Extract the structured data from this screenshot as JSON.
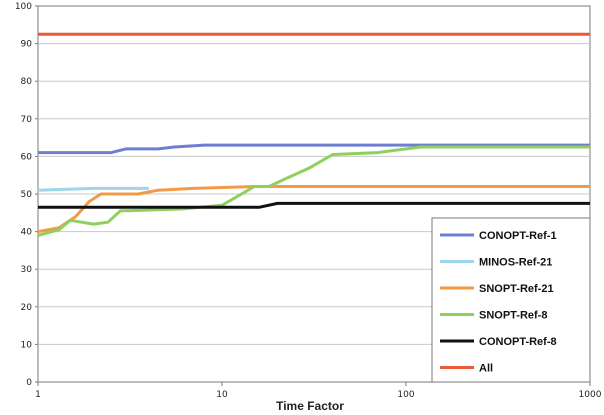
{
  "chart_data": {
    "type": "line",
    "title": "",
    "xlabel": "Time Factor",
    "ylabel": "",
    "x_scale": "log",
    "xlim": [
      1,
      1000
    ],
    "ylim": [
      0,
      100
    ],
    "x_ticks": [
      1,
      10,
      100,
      1000
    ],
    "x_tick_labels": [
      "1",
      "10",
      "100",
      "1000"
    ],
    "y_ticks": [
      0,
      10,
      20,
      30,
      40,
      50,
      60,
      70,
      80,
      90,
      100
    ],
    "y_tick_labels": [
      "0",
      "10",
      "20",
      "30",
      "40",
      "50",
      "60",
      "70",
      "80",
      "90",
      "100"
    ],
    "grid": "horizontal",
    "legend_position": "bottom-right",
    "series": [
      {
        "name": "CONOPT-Ref-1",
        "color": "#6f7fd0",
        "points": [
          [
            1,
            61
          ],
          [
            2.5,
            61
          ],
          [
            3,
            62
          ],
          [
            4.5,
            62
          ],
          [
            5.5,
            62.5
          ],
          [
            8,
            63
          ],
          [
            20,
            63
          ],
          [
            100,
            63
          ],
          [
            1000,
            63
          ]
        ]
      },
      {
        "name": "MINOS-Ref-21",
        "color": "#9fd6ea",
        "points": [
          [
            1,
            51
          ],
          [
            2,
            51.5
          ],
          [
            3,
            51.5
          ],
          [
            4,
            51.5
          ]
        ]
      },
      {
        "name": "SNOPT-Ref-21",
        "color": "#f39a46",
        "points": [
          [
            1,
            40
          ],
          [
            1.3,
            41
          ],
          [
            1.6,
            44
          ],
          [
            1.9,
            48
          ],
          [
            2.2,
            50
          ],
          [
            3.5,
            50
          ],
          [
            4.5,
            51
          ],
          [
            7,
            51.5
          ],
          [
            15,
            52
          ],
          [
            100,
            52
          ],
          [
            1000,
            52
          ]
        ]
      },
      {
        "name": "SNOPT-Ref-8",
        "color": "#8fd05c",
        "points": [
          [
            1,
            39
          ],
          [
            1.3,
            40.5
          ],
          [
            1.5,
            43
          ],
          [
            2,
            42
          ],
          [
            2.4,
            42.5
          ],
          [
            2.8,
            45.5
          ],
          [
            6,
            46
          ],
          [
            10,
            47
          ],
          [
            15,
            52
          ],
          [
            18,
            52
          ],
          [
            22,
            54
          ],
          [
            30,
            57
          ],
          [
            40,
            60.5
          ],
          [
            70,
            61
          ],
          [
            120,
            62.5
          ],
          [
            1000,
            62.5
          ]
        ]
      },
      {
        "name": "CONOPT-Ref-8",
        "color": "#111111",
        "points": [
          [
            1,
            46.5
          ],
          [
            5,
            46.5
          ],
          [
            10,
            46.5
          ],
          [
            16,
            46.5
          ],
          [
            20,
            47.5
          ],
          [
            1000,
            47.5
          ]
        ]
      },
      {
        "name": "All",
        "color": "#e85a38",
        "points": [
          [
            1,
            92.5
          ],
          [
            1000,
            92.5
          ]
        ]
      }
    ]
  }
}
